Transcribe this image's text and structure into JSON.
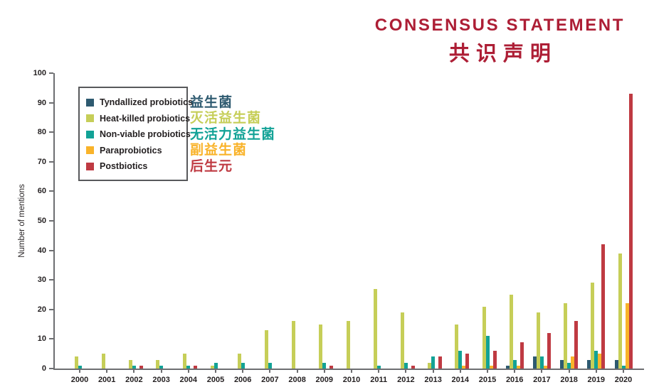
{
  "header": {
    "title_en": "CONSENSUS STATEMENT",
    "title_zh": "共识声明",
    "color": "#ad1e35"
  },
  "chart_data": {
    "type": "bar",
    "title": "",
    "xlabel": "",
    "ylabel": "Number of mentions",
    "ylim": [
      0,
      100
    ],
    "ytick_step": 10,
    "grid": false,
    "legend_position": "upper-left-inside",
    "axis_color": "#6d6e71",
    "categories": [
      "2000",
      "2001",
      "2002",
      "2003",
      "2004",
      "2005",
      "2006",
      "2007",
      "2008",
      "2009",
      "2010",
      "2011",
      "2012",
      "2013",
      "2014",
      "2015",
      "2016",
      "2017",
      "2018",
      "2019",
      "2020"
    ],
    "series": [
      {
        "name": "Tyndallized probiotics",
        "name_zh": "益生菌",
        "color": "#2e5a70",
        "values": [
          0,
          0,
          0,
          0,
          0,
          0,
          0,
          0,
          0,
          0,
          0,
          0,
          0,
          0,
          0,
          0,
          1,
          4,
          3,
          3,
          3
        ]
      },
      {
        "name": "Heat-killed probiotics",
        "name_zh": "灭活益生菌",
        "color": "#c6ce58",
        "values": [
          4,
          5,
          3,
          3,
          5,
          1,
          5,
          13,
          16,
          15,
          16,
          27,
          19,
          2,
          15,
          21,
          25,
          19,
          22,
          29,
          39
        ]
      },
      {
        "name": "Non-viable probiotics",
        "name_zh": "无活力益生菌",
        "color": "#12a296",
        "values": [
          1,
          0,
          1,
          1,
          1,
          2,
          2,
          2,
          0,
          2,
          0,
          1,
          2,
          4,
          6,
          11,
          3,
          4,
          2,
          6,
          1
        ]
      },
      {
        "name": "Paraprobiotics",
        "name_zh": "副益生菌",
        "color": "#f9b32a",
        "values": [
          0,
          0,
          0,
          0,
          0,
          0,
          0,
          0,
          0,
          0,
          0,
          0,
          0,
          0,
          1,
          1,
          1,
          1,
          4,
          5,
          22
        ]
      },
      {
        "name": "Postbiotics",
        "name_zh": "后生元",
        "color": "#bf3a42",
        "values": [
          0,
          0,
          1,
          0,
          1,
          0,
          0,
          0,
          0,
          1,
          0,
          0,
          1,
          4,
          5,
          6,
          9,
          12,
          16,
          42,
          93
        ]
      }
    ]
  }
}
